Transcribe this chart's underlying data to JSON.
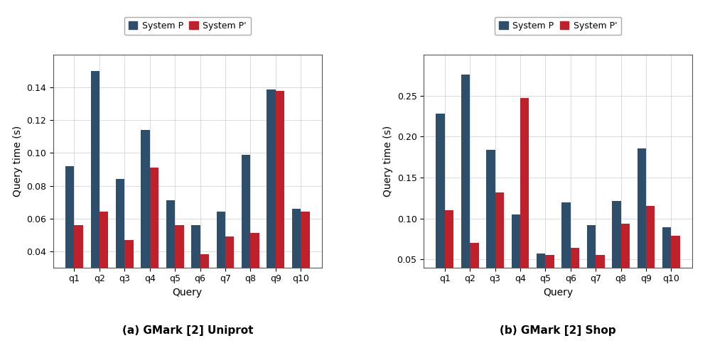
{
  "queries": [
    "q1",
    "q2",
    "q3",
    "q4",
    "q5",
    "q6",
    "q7",
    "q8",
    "q9",
    "q10"
  ],
  "uniprot": {
    "system_p": [
      0.092,
      0.15,
      0.084,
      0.114,
      0.071,
      0.056,
      0.064,
      0.099,
      0.139,
      0.066
    ],
    "system_pp": [
      0.056,
      0.064,
      0.047,
      0.091,
      0.056,
      0.038,
      0.049,
      0.051,
      0.138,
      0.064
    ]
  },
  "shop": {
    "system_p": [
      0.228,
      0.276,
      0.184,
      0.105,
      0.057,
      0.12,
      0.092,
      0.121,
      0.186,
      0.089
    ],
    "system_pp": [
      0.11,
      0.07,
      0.132,
      0.247,
      0.055,
      0.064,
      0.055,
      0.094,
      0.115,
      0.079
    ]
  },
  "color_p": "#2e4f6b",
  "color_pp": "#c0202a",
  "ylabel": "Query time (s)",
  "xlabel": "Query",
  "label_p": "System P",
  "label_pp": "System P'",
  "title_a": "(a) GMark [2] Uniprot",
  "title_b": "(b) GMark [2] Shop",
  "ylim_a": [
    0.03,
    0.16
  ],
  "ylim_b": [
    0.04,
    0.3
  ],
  "yticks_a": [
    0.04,
    0.06,
    0.08,
    0.1,
    0.12,
    0.14
  ],
  "yticks_b": [
    0.05,
    0.1,
    0.15,
    0.2,
    0.25
  ],
  "bar_width": 0.35
}
